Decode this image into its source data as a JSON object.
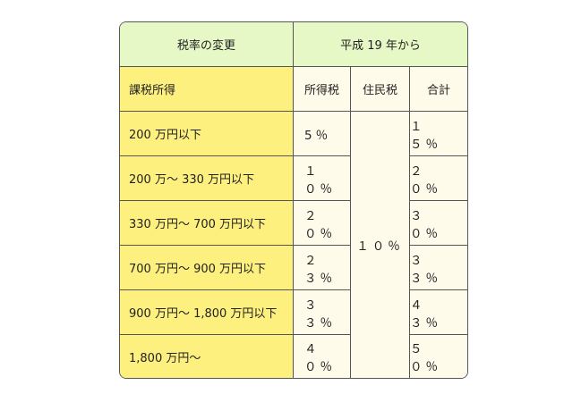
{
  "header": {
    "change_label": "税率の変更",
    "period_label": "平成 19 年から"
  },
  "columns": {
    "income": "課税所得",
    "income_tax": "所得税",
    "resident_tax": "住民税",
    "total": "合計"
  },
  "resident_tax_all": "１０％",
  "rows": [
    {
      "bracket": "200 万円以下",
      "income_tax": "5％",
      "total": "１５％"
    },
    {
      "bracket": "200 万～ 330 万円以下",
      "income_tax": "１０％",
      "total": "２０％"
    },
    {
      "bracket": "330 万円～ 700 万円以下",
      "income_tax": "２０％",
      "total": "３０％"
    },
    {
      "bracket": "700 万円～ 900 万円以下",
      "income_tax": "２３％",
      "total": "３３％"
    },
    {
      "bracket": "900 万円～ 1,800 万円以下",
      "income_tax": "３３％",
      "total": "４３％"
    },
    {
      "bracket": "1,800 万円～",
      "income_tax": "４０％",
      "total": "５０％"
    }
  ]
}
